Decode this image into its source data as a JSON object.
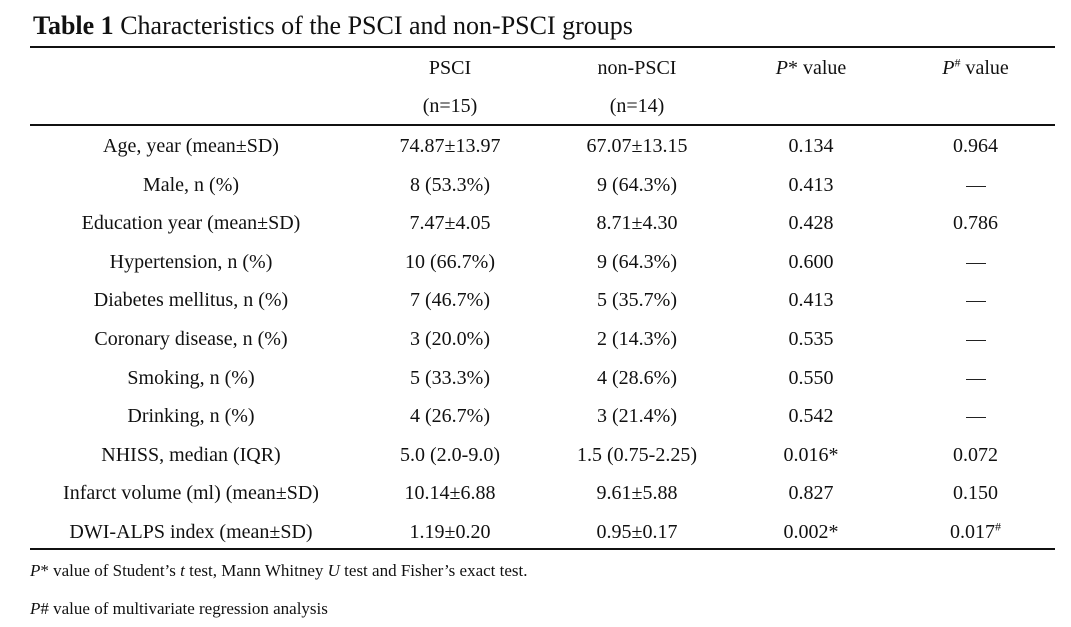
{
  "title": {
    "label": "Table 1",
    "text": "Characteristics of the PSCI and non-PSCI groups"
  },
  "columns": {
    "psci": "PSCI",
    "psci_n": "(n=15)",
    "non_psci": "non-PSCI",
    "non_psci_n": "(n=14)",
    "p_star_letter": "P",
    "p_star_rest": "* value",
    "p_hash_letter": "P",
    "p_hash_sup": "#",
    "p_hash_rest": " value"
  },
  "rows": [
    {
      "label": "Age, year (mean±SD)",
      "psci": "74.87±13.97",
      "non_psci": "67.07±13.15",
      "p_star": "0.134",
      "p_hash": "0.964"
    },
    {
      "label": "Male, n (%)",
      "psci": "8 (53.3%)",
      "non_psci": "9 (64.3%)",
      "p_star": "0.413",
      "p_hash": "—"
    },
    {
      "label": "Education year (mean±SD)",
      "psci": "7.47±4.05",
      "non_psci": "8.71±4.30",
      "p_star": "0.428",
      "p_hash": "0.786"
    },
    {
      "label": "Hypertension, n (%)",
      "psci": "10 (66.7%)",
      "non_psci": "9 (64.3%)",
      "p_star": "0.600",
      "p_hash": "—"
    },
    {
      "label": "Diabetes mellitus, n (%)",
      "psci": "7 (46.7%)",
      "non_psci": "5 (35.7%)",
      "p_star": "0.413",
      "p_hash": "—"
    },
    {
      "label": "Coronary disease, n (%)",
      "psci": "3 (20.0%)",
      "non_psci": "2 (14.3%)",
      "p_star": "0.535",
      "p_hash": "—"
    },
    {
      "label": "Smoking, n (%)",
      "psci": "5 (33.3%)",
      "non_psci": "4 (28.6%)",
      "p_star": "0.550",
      "p_hash": "—"
    },
    {
      "label": "Drinking, n (%)",
      "psci": "4 (26.7%)",
      "non_psci": "3 (21.4%)",
      "p_star": "0.542",
      "p_hash": "—"
    },
    {
      "label": "NHISS, median (IQR)",
      "psci": "5.0 (2.0-9.0)",
      "non_psci": "1.5 (0.75-2.25)",
      "p_star": "0.016*",
      "p_hash": "0.072"
    },
    {
      "label": "Infarct volume (ml) (mean±SD)",
      "psci": "10.14±6.88",
      "non_psci": "9.61±5.88",
      "p_star": "0.827",
      "p_hash": "0.150"
    },
    {
      "label": "DWI-ALPS index (mean±SD)",
      "psci": "1.19±0.20",
      "non_psci": "0.95±0.17",
      "p_star": "0.002*",
      "p_hash": "0.017",
      "p_hash_sup": "#"
    }
  ],
  "notes": {
    "n1_letter": "P",
    "n1_a": "* value of Student’s ",
    "n1_t": "t",
    "n1_b": " test, Mann Whitney ",
    "n1_u": "U",
    "n1_c": " test and Fisher’s exact test.",
    "n2_letter": "P",
    "n2_rest": "# value of multivariate regression analysis"
  }
}
